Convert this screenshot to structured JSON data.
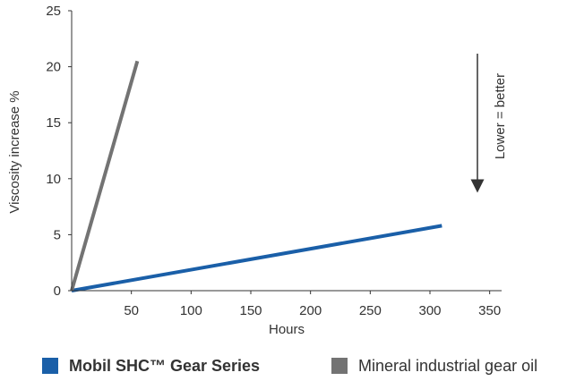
{
  "chart_data": {
    "type": "line",
    "xlabel": "Hours",
    "ylabel": "Viscosity  increase %",
    "xlim": [
      0,
      360
    ],
    "ylim": [
      0,
      25
    ],
    "x_ticks": [
      50,
      100,
      150,
      200,
      250,
      300,
      350
    ],
    "y_ticks": [
      0,
      5,
      10,
      15,
      20,
      25
    ],
    "grid": false,
    "annotation": "Lower = better",
    "series": [
      {
        "name": "Mobil SHC™ Gear Series",
        "color": "#1a5fa8",
        "points": [
          [
            0,
            0
          ],
          [
            310,
            5.8
          ]
        ]
      },
      {
        "name": "Mineral industrial gear oil",
        "color": "#737373",
        "points": [
          [
            0,
            0
          ],
          [
            55,
            20.5
          ]
        ]
      }
    ]
  }
}
